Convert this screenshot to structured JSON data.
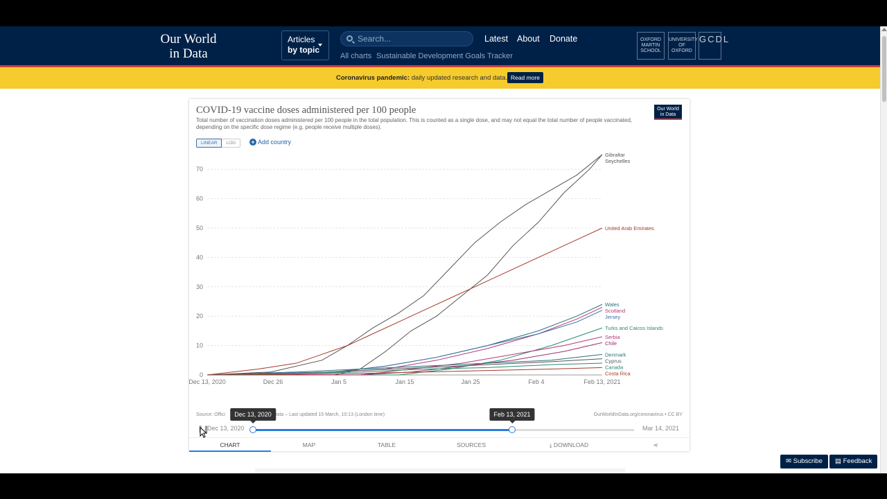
{
  "header": {
    "logo_line1": "Our World",
    "logo_line2": "in Data",
    "articles_line1": "Articles",
    "articles_line2": "by topic",
    "search_placeholder": "Search...",
    "nav": [
      "Latest",
      "About",
      "Donate"
    ],
    "subnav": [
      "All charts",
      "Sustainable Development Goals Tracker"
    ],
    "partners": [
      "OXFORD MARTIN SCHOOL",
      "UNIVERSITY OF OXFORD",
      "GCDL"
    ]
  },
  "banner": {
    "bold": "Coronavirus pandemic:",
    "text": " daily updated research and data.",
    "button": "Read more"
  },
  "chart": {
    "title": "COVID-19 vaccine doses administered per 100 people",
    "subtitle": "Total number of vaccination doses administered per 100 people in the total population. This is counted as a single dose, and may not equal the total number of people vaccinated, depending on the specific dose regime (e.g. people receive multiple doses).",
    "badge_line1": "Our World",
    "badge_line2": "in Data",
    "scale_linear": "LINEAR",
    "scale_log": "LOG",
    "add_country": "Add country",
    "source_left": "Source: Offici",
    "source_mid": "World in Data – Last updated 15 March, 10:13 (London time)",
    "source_right": "OurWorldInData.org/coronavirus • CC BY"
  },
  "chart_data": {
    "type": "line",
    "title": "COVID-19 vaccine doses administered per 100 people",
    "x_ticks": [
      "Dec 13, 2020",
      "Dec 26",
      "Jan 5",
      "Jan 15",
      "Jan 25",
      "Feb 4",
      "Feb 13, 2021"
    ],
    "y_ticks": [
      0,
      10,
      20,
      30,
      40,
      50,
      60,
      70
    ],
    "ylim": [
      0,
      75
    ],
    "xlim": [
      0,
      62
    ],
    "grid": true,
    "series": [
      {
        "name": "Gibraltar",
        "color": "#555555",
        "x": [
          0,
          10,
          18,
          22,
          26,
          30,
          34,
          38,
          42,
          46,
          50,
          54,
          58,
          62
        ],
        "y": [
          0,
          1,
          5,
          10,
          16,
          21,
          27,
          36,
          45,
          52,
          58,
          63,
          68,
          75
        ]
      },
      {
        "name": "Seychelles",
        "color": "#555555",
        "x": [
          0,
          20,
          24,
          28,
          32,
          36,
          40,
          44,
          48,
          52,
          56,
          60,
          62
        ],
        "y": [
          0,
          0,
          2,
          8,
          15,
          20,
          27,
          34,
          44,
          52,
          62,
          70,
          75
        ]
      },
      {
        "name": "United Arab Emirates",
        "color": "#a5392a",
        "x": [
          0,
          8,
          14,
          18,
          22,
          26,
          30,
          34,
          38,
          42,
          46,
          50,
          54,
          58,
          62
        ],
        "y": [
          0,
          2,
          4,
          7,
          10,
          14,
          18,
          22,
          26,
          30,
          34,
          38,
          42,
          46,
          50
        ]
      },
      {
        "name": "Wales",
        "color": "#286f7e",
        "x": [
          0,
          20,
          28,
          36,
          44,
          52,
          58,
          62
        ],
        "y": [
          0,
          1,
          3,
          6,
          10,
          15,
          20,
          24
        ]
      },
      {
        "name": "Scotland",
        "color": "#b13a7a",
        "x": [
          0,
          20,
          28,
          36,
          44,
          52,
          58,
          62
        ],
        "y": [
          0,
          1,
          2,
          5,
          9,
          14,
          19,
          23
        ]
      },
      {
        "name": "Jersey",
        "color": "#3a6ea5",
        "x": [
          0,
          20,
          28,
          36,
          44,
          52,
          58,
          62
        ],
        "y": [
          0,
          1,
          3,
          6,
          10,
          14,
          18,
          22
        ]
      },
      {
        "name": "Turks and Caicos Islands",
        "color": "#2a8a6e",
        "x": [
          0,
          30,
          38,
          46,
          54,
          62
        ],
        "y": [
          0,
          0,
          2,
          5,
          10,
          16
        ]
      },
      {
        "name": "Serbia",
        "color": "#b13a7a",
        "x": [
          0,
          24,
          32,
          40,
          48,
          56,
          62
        ],
        "y": [
          0,
          0,
          2,
          4,
          7,
          10,
          13
        ]
      },
      {
        "name": "Chile",
        "color": "#9a2e6a",
        "x": [
          0,
          24,
          32,
          40,
          48,
          56,
          62
        ],
        "y": [
          0,
          0,
          1,
          3,
          5,
          8,
          11
        ]
      },
      {
        "name": "Denmark",
        "color": "#286f7e",
        "x": [
          0,
          14,
          24,
          34,
          44,
          54,
          62
        ],
        "y": [
          0,
          1,
          2,
          3,
          4,
          5,
          7
        ]
      },
      {
        "name": "Cyprus",
        "color": "#555555",
        "x": [
          0,
          14,
          24,
          34,
          44,
          54,
          62
        ],
        "y": [
          0,
          0.5,
          1.5,
          2.5,
          3.5,
          4.5,
          5.5
        ]
      },
      {
        "name": "Canada",
        "color": "#2a8a6e",
        "x": [
          0,
          14,
          24,
          34,
          44,
          54,
          62
        ],
        "y": [
          0,
          0.5,
          1,
          2,
          2.5,
          3.5,
          4
        ]
      },
      {
        "name": "Costa Rica",
        "color": "#a5392a",
        "x": [
          0,
          14,
          24,
          34,
          44,
          54,
          62
        ],
        "y": [
          0,
          0.2,
          0.5,
          1,
          1.5,
          2,
          2.5
        ]
      }
    ]
  },
  "timeline": {
    "start_label": "Dec 13, 2020",
    "end_label": "Mar 14, 2021",
    "handle_start": "Dec 13, 2020",
    "handle_end": "Feb 13, 2021",
    "start_fraction": 0.0,
    "end_fraction": 0.68
  },
  "tabs": [
    "CHART",
    "MAP",
    "TABLE",
    "SOURCES",
    "DOWNLOAD"
  ],
  "buttons": {
    "subscribe": "Subscribe",
    "feedback": "Feedback"
  }
}
